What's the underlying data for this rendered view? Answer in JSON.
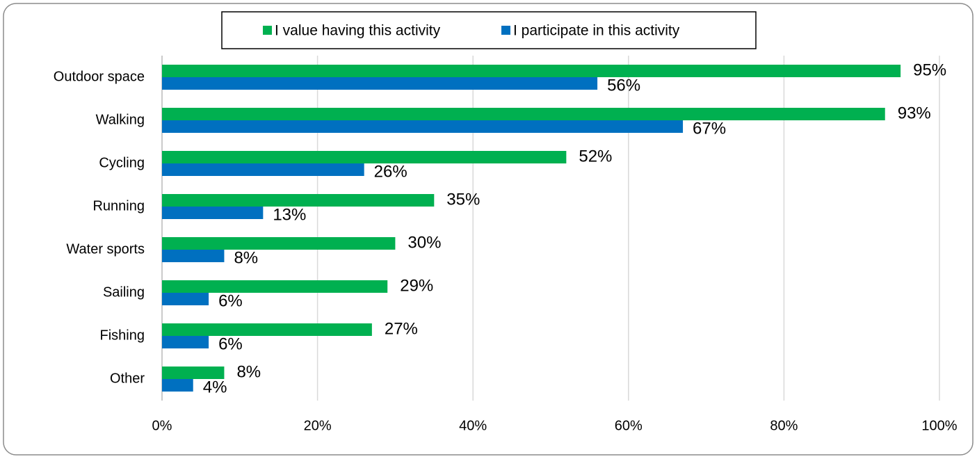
{
  "chart_data": {
    "type": "bar",
    "orientation": "horizontal",
    "categories": [
      "Outdoor space",
      "Walking",
      "Cycling",
      "Running",
      "Water sports",
      "Sailing",
      "Fishing",
      "Other"
    ],
    "series": [
      {
        "name": "I value having this activity",
        "color": "#00b050",
        "values": [
          95,
          93,
          52,
          35,
          30,
          29,
          27,
          8
        ],
        "value_labels": [
          "95%",
          "93%",
          "52%",
          "35%",
          "30%",
          "29%",
          "27%",
          "8%"
        ]
      },
      {
        "name": "I participate in this activity",
        "color": "#0070c0",
        "values": [
          56,
          67,
          26,
          13,
          8,
          6,
          6,
          4
        ],
        "value_labels": [
          "56%",
          "67%",
          "26%",
          "13%",
          "8%",
          "6%",
          "6%",
          "4%"
        ]
      }
    ],
    "xlim": [
      0,
      100
    ],
    "xticks": [
      {
        "value": 0,
        "label": "0%"
      },
      {
        "value": 20,
        "label": "20%"
      },
      {
        "value": 40,
        "label": "40%"
      },
      {
        "value": 60,
        "label": "60%"
      },
      {
        "value": 80,
        "label": "80%"
      },
      {
        "value": 100,
        "label": "100%"
      }
    ],
    "grid": true,
    "legend": "top"
  }
}
